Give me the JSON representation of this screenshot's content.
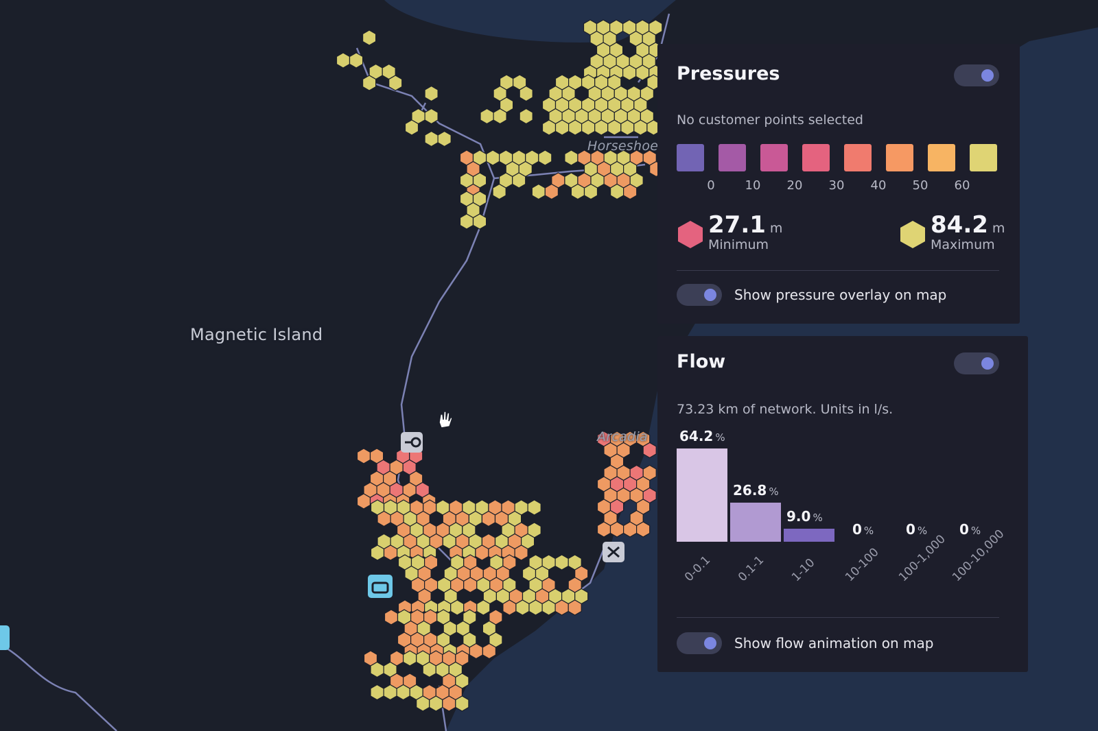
{
  "map": {
    "place_main": "Magnetic Island",
    "place_north": "Horseshoe",
    "place_east": "Arcadia",
    "colors": {
      "land": "#1b1f2a",
      "water": "#22304a",
      "hex_yellow": "#d8cf6e",
      "hex_orange": "#ee9a62",
      "hex_pink": "#ec7676",
      "pipe": "#7c82b4"
    }
  },
  "pressures": {
    "title": "Pressures",
    "toggle_on": true,
    "subtitle": "No customer points selected",
    "legend_colors": [
      "#7264b4",
      "#a45aa6",
      "#c95996",
      "#e4637f",
      "#f07b6e",
      "#f69963",
      "#f7b463",
      "#dfd474"
    ],
    "legend_ticks": [
      "0",
      "10",
      "20",
      "30",
      "40",
      "50",
      "60"
    ],
    "min_value": "27.1",
    "min_unit": "m",
    "min_label": "Minimum",
    "min_color": "#e4637f",
    "max_value": "84.2",
    "max_unit": "m",
    "max_label": "Maximum",
    "max_color": "#dfd474",
    "overlay_label": "Show pressure overlay on map",
    "overlay_on": true
  },
  "flow": {
    "title": "Flow",
    "toggle_on": true,
    "subtitle": "73.23 km of network. Units in l/s.",
    "animation_label": "Show flow animation on map",
    "animation_on": true
  },
  "chart_data": {
    "type": "bar",
    "categories": [
      "0-0.1",
      "0.1-1",
      "1-10",
      "10-100",
      "100-1,000",
      "100-10,000"
    ],
    "values": [
      64.2,
      26.8,
      9.0,
      0,
      0,
      0
    ],
    "value_labels": [
      "64.2",
      "26.8",
      "9.0",
      "0",
      "0",
      "0"
    ],
    "unit": "%",
    "bar_colors": [
      "#d9c6e6",
      "#b19ad2",
      "#7d68c0",
      "#7d68c0",
      "#7d68c0",
      "#7d68c0"
    ],
    "ylim": [
      0,
      64.2
    ],
    "grid": false,
    "legend": "none"
  }
}
